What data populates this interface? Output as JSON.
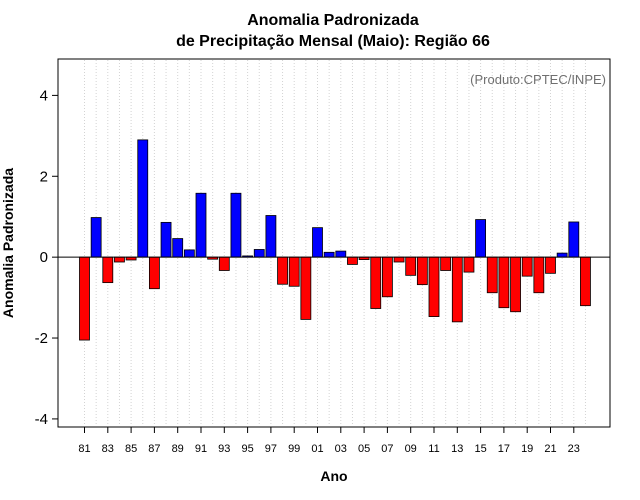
{
  "chart_data": {
    "type": "bar",
    "title": "Anomalia Padronizada",
    "subtitle": "de Precipitação Mensal (Maio): Região 66",
    "xlabel": "Ano",
    "ylabel": "Anomalia Padronizada",
    "credit": "(Produto:CPTEC/INPE)",
    "ylim": [
      -4.2,
      4.9
    ],
    "yticks": [
      {
        "value": 4,
        "label": "4"
      },
      {
        "value": 2,
        "label": "2"
      },
      {
        "value": 0,
        "label": "0"
      },
      {
        "value": -2,
        "label": "-2"
      },
      {
        "value": -4,
        "label": "-4"
      }
    ],
    "categories": [
      "81",
      "82",
      "83",
      "84",
      "85",
      "86",
      "87",
      "88",
      "89",
      "90",
      "91",
      "92",
      "93",
      "94",
      "95",
      "96",
      "97",
      "98",
      "99",
      "00",
      "01",
      "02",
      "03",
      "04",
      "05",
      "06",
      "07",
      "08",
      "09",
      "10",
      "11",
      "12",
      "13",
      "14",
      "15",
      "16",
      "17",
      "18",
      "19",
      "20",
      "21",
      "22",
      "23",
      "24"
    ],
    "tick_labels": [
      "81",
      "83",
      "85",
      "87",
      "89",
      "91",
      "93",
      "95",
      "97",
      "99",
      "01",
      "03",
      "05",
      "07",
      "09",
      "11",
      "13",
      "15",
      "17",
      "19",
      "21",
      "23"
    ],
    "values": [
      -2.05,
      0.98,
      -0.63,
      -0.12,
      -0.07,
      2.9,
      -0.78,
      0.86,
      0.46,
      0.18,
      1.58,
      -0.05,
      -0.33,
      1.58,
      0.03,
      0.19,
      1.03,
      -0.67,
      -0.72,
      -1.54,
      0.73,
      0.12,
      0.15,
      -0.18,
      -0.06,
      -1.27,
      -0.98,
      -0.12,
      -0.45,
      -0.68,
      -1.47,
      -0.33,
      -1.6,
      -0.37,
      0.93,
      -0.88,
      -1.25,
      -1.35,
      -0.47,
      -0.88,
      -0.4,
      0.1,
      0.87,
      -1.2
    ],
    "positive_color": "#0000ff",
    "negative_color": "#ff0000",
    "grid": true
  }
}
